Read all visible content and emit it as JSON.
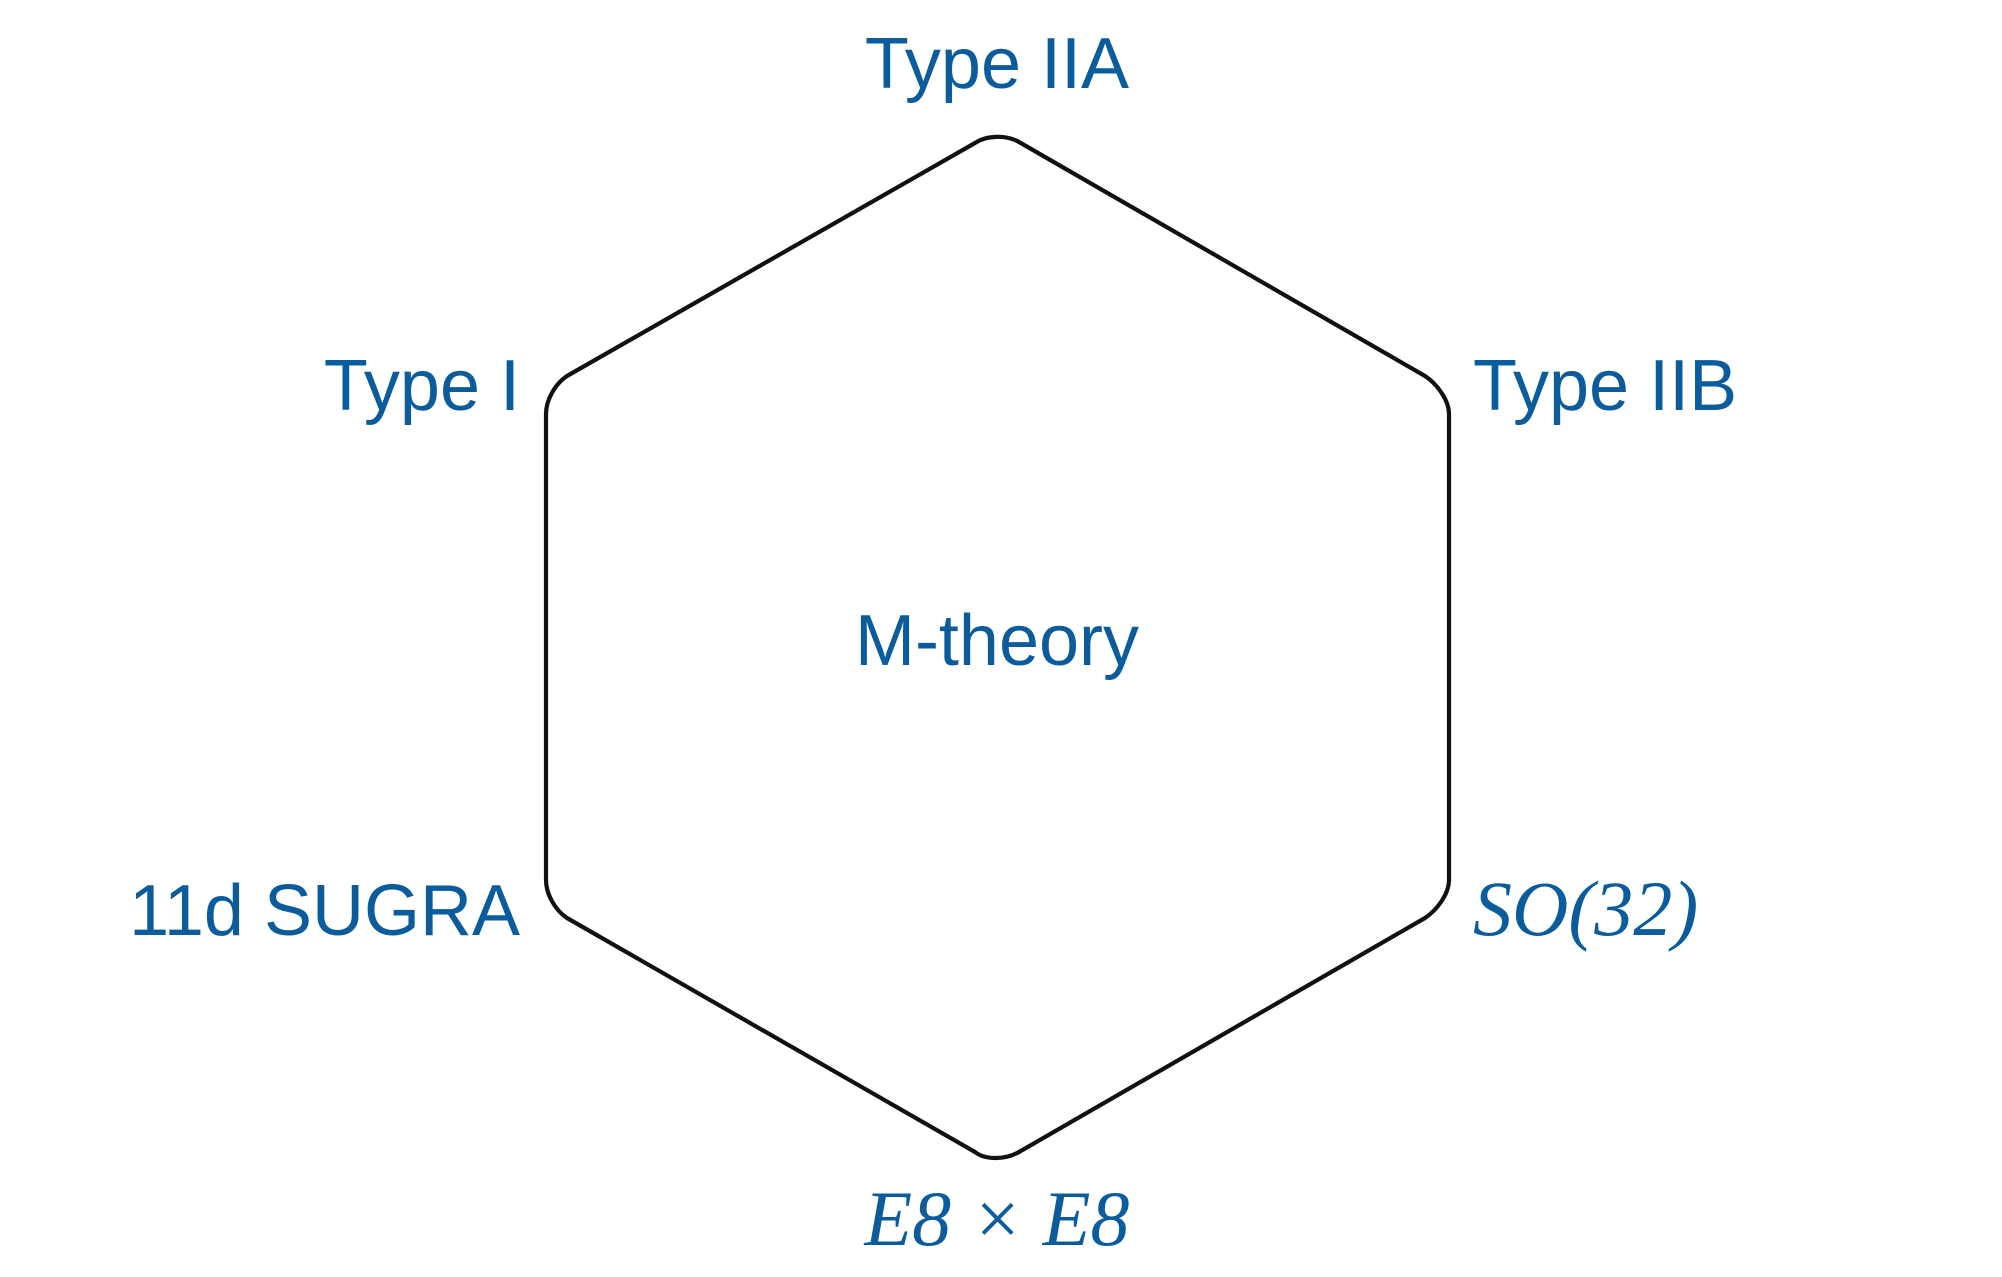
{
  "diagram": {
    "center_label": "M-theory",
    "vertices": [
      {
        "id": "top",
        "label": "Type IIA"
      },
      {
        "id": "upper-right",
        "label": "Type IIB"
      },
      {
        "id": "lower-right",
        "label": "SO(32)"
      },
      {
        "id": "bottom",
        "label": "E8 × E8"
      },
      {
        "id": "lower-left",
        "label": "11d SUGRA"
      },
      {
        "id": "upper-left",
        "label": "Type I"
      }
    ]
  },
  "colors": {
    "label": "#0B5C9C",
    "outline": "#111111",
    "background": "#FFFFFF"
  }
}
